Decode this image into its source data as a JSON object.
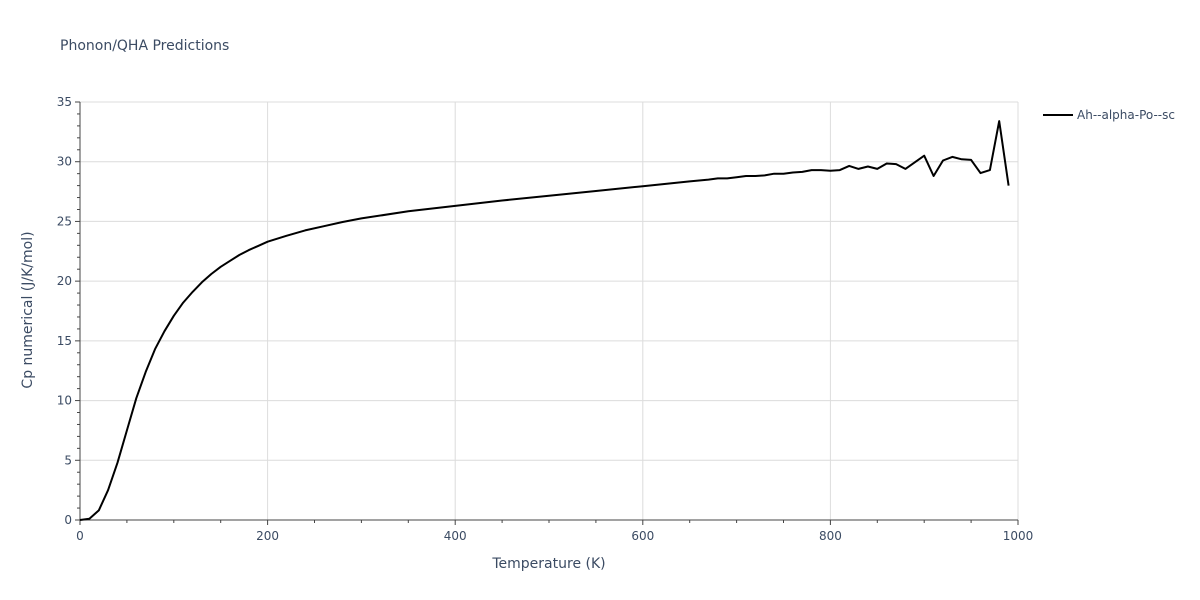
{
  "chart_data": {
    "type": "line",
    "title": "Phonon/QHA Predictions",
    "xlabel": "Temperature (K)",
    "ylabel": "Cp numerical (J/K/mol)",
    "xlim": [
      0,
      1000
    ],
    "ylim": [
      0,
      35
    ],
    "xticks": [
      0,
      200,
      400,
      600,
      800,
      1000
    ],
    "yticks": [
      0,
      5,
      10,
      15,
      20,
      25,
      30,
      35
    ],
    "grid": true,
    "legend_position": "top-right",
    "series": [
      {
        "name": "Ah--alpha-Po--sc",
        "color": "#000000",
        "x": [
          0,
          10,
          20,
          30,
          40,
          50,
          60,
          70,
          80,
          90,
          100,
          110,
          120,
          130,
          140,
          150,
          160,
          170,
          180,
          190,
          200,
          220,
          240,
          260,
          280,
          300,
          350,
          400,
          450,
          500,
          550,
          600,
          650,
          670,
          680,
          690,
          700,
          710,
          720,
          730,
          740,
          750,
          760,
          770,
          780,
          790,
          800,
          810,
          820,
          830,
          840,
          850,
          860,
          870,
          880,
          890,
          900,
          910,
          920,
          930,
          940,
          950,
          960,
          970,
          980,
          990
        ],
        "y": [
          0,
          0.1,
          0.8,
          2.5,
          4.8,
          7.5,
          10.2,
          12.4,
          14.3,
          15.8,
          17.1,
          18.2,
          19.1,
          19.9,
          20.6,
          21.2,
          21.7,
          22.2,
          22.6,
          22.95,
          23.3,
          23.8,
          24.25,
          24.6,
          24.95,
          25.25,
          25.85,
          26.3,
          26.75,
          27.15,
          27.55,
          27.95,
          28.35,
          28.5,
          28.6,
          28.6,
          28.7,
          28.8,
          28.8,
          28.85,
          29.0,
          29.0,
          29.1,
          29.15,
          29.3,
          29.3,
          29.25,
          29.3,
          29.65,
          29.4,
          29.6,
          29.4,
          29.85,
          29.8,
          29.4,
          29.95,
          30.5,
          28.8,
          30.1,
          30.4,
          30.2,
          30.15,
          29.05,
          29.3,
          33.4,
          28.0
        ]
      }
    ]
  }
}
